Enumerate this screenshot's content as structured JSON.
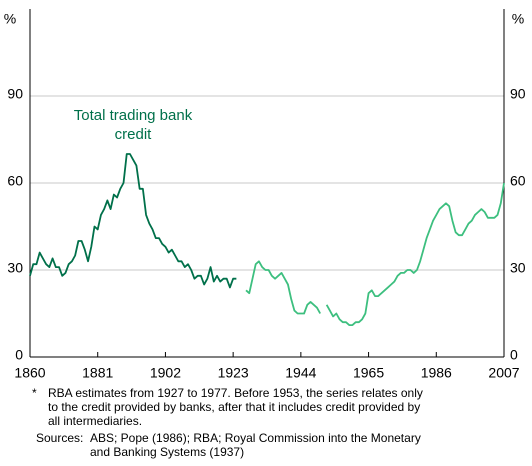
{
  "chart_data": {
    "type": "line",
    "y_unit": "%",
    "annotation_lines": [
      "Total trading bank",
      "credit"
    ],
    "notes": [
      {
        "marker": "*",
        "lines": [
          "RBA estimates from 1927 to 1977. Before 1953, the series relates only",
          "to the credit provided by banks, after that it includes credit provided by",
          "all intermediaries."
        ]
      },
      {
        "marker": "Sources:",
        "lines": [
          "ABS; Pope (1986); RBA; Royal Commission into the Monetary",
          "and Banking Systems (1937)"
        ]
      }
    ],
    "xlim": [
      1860,
      2007
    ],
    "xticks": [
      1860,
      1881,
      1902,
      1923,
      1944,
      1965,
      1986,
      2007
    ],
    "ylim": [
      0,
      120
    ],
    "yticks": [
      0,
      30,
      60,
      90
    ],
    "y2lim": [
      0,
      120
    ],
    "y2ticks": [
      0,
      30,
      60,
      90
    ],
    "grid": true,
    "series": [
      {
        "color": "#00704a",
        "x": [
          1860,
          1861,
          1862,
          1863,
          1864,
          1865,
          1866,
          1867,
          1868,
          1869,
          1870,
          1871,
          1872,
          1873,
          1874,
          1875,
          1876,
          1877,
          1878,
          1879,
          1880,
          1881,
          1882,
          1883,
          1884,
          1885,
          1886,
          1887,
          1888,
          1889,
          1890,
          1891,
          1892,
          1893,
          1894,
          1895,
          1896,
          1897,
          1898,
          1899,
          1900,
          1901,
          1902,
          1903,
          1904,
          1905,
          1906,
          1907,
          1908,
          1909,
          1910,
          1911,
          1912,
          1913,
          1914,
          1915,
          1916,
          1917,
          1918,
          1919,
          1920,
          1921,
          1922,
          1923,
          1924
        ],
        "values": [
          28,
          32,
          32,
          36,
          34,
          32,
          31,
          34,
          31,
          31,
          28,
          29,
          32,
          33,
          35,
          40,
          40,
          37,
          33,
          38,
          45,
          44,
          49,
          51,
          54,
          51,
          56,
          55,
          58,
          60,
          70,
          70,
          68,
          66,
          58,
          58,
          49,
          46,
          44,
          41,
          41,
          39,
          38,
          36,
          37,
          35,
          33,
          33,
          31,
          32,
          30,
          27,
          28,
          28,
          25,
          27,
          31,
          26,
          28,
          26,
          27,
          27,
          24,
          27,
          27
        ]
      },
      {
        "color": "#3dbf7f",
        "x": [
          1927,
          1928,
          1929,
          1930,
          1931,
          1932,
          1933,
          1934,
          1935,
          1936,
          1937,
          1938,
          1939,
          1940,
          1941,
          1942,
          1943,
          1944,
          1945,
          1946,
          1947,
          1948,
          1949,
          1950,
          1951,
          1952,
          1953,
          1954,
          1955,
          1956,
          1957,
          1958,
          1959,
          1960,
          1961,
          1962,
          1963,
          1964,
          1965,
          1966,
          1967,
          1968,
          1969,
          1970,
          1971,
          1972,
          1973,
          1974,
          1975,
          1976,
          1977,
          1978,
          1979,
          1980,
          1981,
          1982,
          1983,
          1984,
          1985,
          1986,
          1987,
          1988,
          1989,
          1990,
          1991,
          1992,
          1993,
          1994,
          1995,
          1996,
          1997,
          1998,
          1999,
          2000,
          2001,
          2002,
          2003,
          2004,
          2005,
          2006,
          2007
        ],
        "values": [
          23,
          22,
          27,
          32,
          33,
          31,
          30,
          30,
          28,
          27,
          28,
          29,
          27,
          25,
          20,
          16,
          15,
          15,
          15,
          18,
          19,
          18,
          17,
          15,
          null,
          18,
          16,
          14,
          15,
          13,
          12,
          12,
          11,
          11,
          12,
          12,
          13,
          15,
          22,
          23,
          21,
          21,
          22,
          23,
          24,
          25,
          26,
          28,
          29,
          29,
          30,
          30,
          29,
          30,
          33,
          37,
          41,
          44,
          47,
          49,
          51,
          52,
          53,
          52,
          47,
          43,
          42,
          42,
          44,
          46,
          47,
          49,
          50,
          51,
          50,
          48,
          48,
          48,
          49,
          53,
          60
        ]
      }
    ]
  }
}
